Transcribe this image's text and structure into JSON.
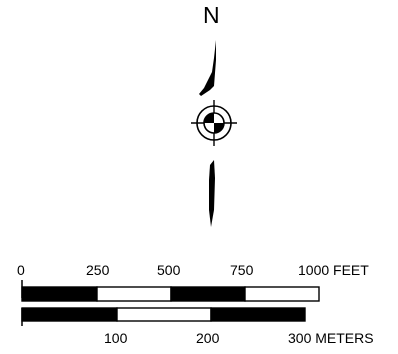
{
  "north_arrow": {
    "letter": "N",
    "icon": "north-arrow-compass-icon"
  },
  "scale_bar": {
    "feet": {
      "ticks": [
        "0",
        "250",
        "500",
        "750",
        "1000 FEET"
      ],
      "values": [
        0,
        250,
        500,
        750,
        1000
      ],
      "unit": "FEET"
    },
    "meters": {
      "ticks": [
        "100",
        "200",
        "300 METERS"
      ],
      "values": [
        100,
        200,
        300
      ],
      "unit": "METERS"
    }
  },
  "colors": {
    "ink": "#000000",
    "paper": "#ffffff"
  }
}
